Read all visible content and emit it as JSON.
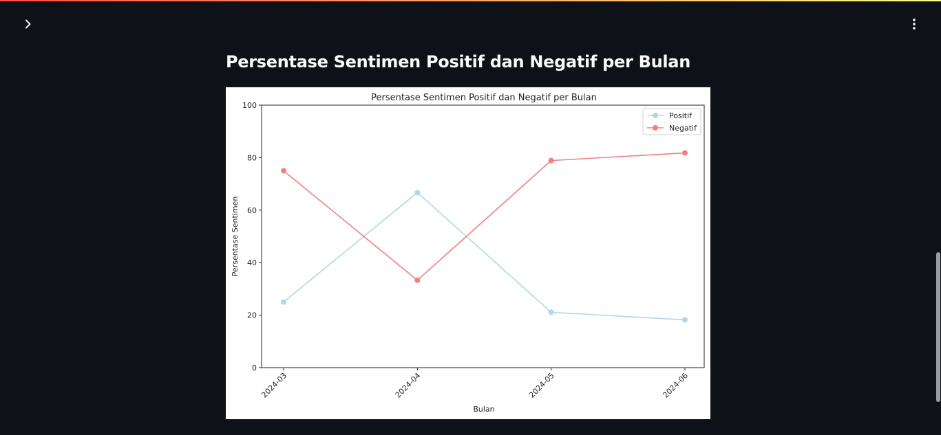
{
  "page": {
    "title": "Persentase Sentimen Positif dan Negatif per Bulan"
  },
  "icons": {
    "sidebar_toggle": "chevron-right-icon",
    "main_menu": "vertical-dots-icon"
  },
  "colors": {
    "background": "#0e1117",
    "title_text": "#fafafa",
    "positif": "#add8e6",
    "negatif": "#f08080"
  },
  "chart_data": {
    "type": "line",
    "title": "Persentase Sentimen Positif dan Negatif per Bulan",
    "xlabel": "Bulan",
    "ylabel": "Persentase Sentimen",
    "categories": [
      "2024-03",
      "2024-04",
      "2024-05",
      "2024-06"
    ],
    "ylim": [
      0,
      100
    ],
    "yticks": [
      "0",
      "20",
      "40",
      "60",
      "80",
      "100"
    ],
    "grid": false,
    "legend_position": "top-right",
    "series": [
      {
        "name": "Positif",
        "color": "#add8e6",
        "values": [
          25.0,
          66.7,
          21.1,
          18.2
        ]
      },
      {
        "name": "Negatif",
        "color": "#f08080",
        "values": [
          75.0,
          33.3,
          78.9,
          81.8
        ]
      }
    ]
  }
}
